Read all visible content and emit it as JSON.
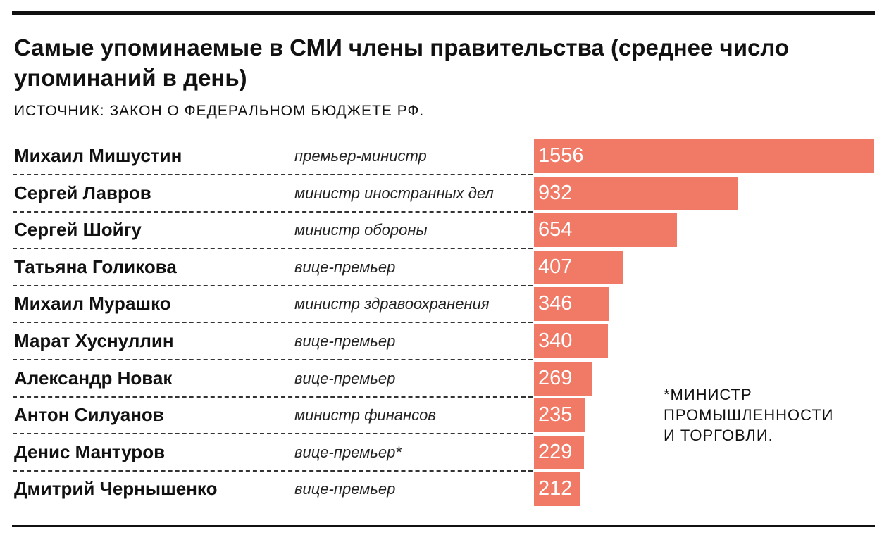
{
  "chart_data": {
    "type": "bar",
    "orientation": "horizontal",
    "title": "Самые упоминаемые в СМИ члены правительства (среднее число упоминаний в день)",
    "subtitle": "ИСТОЧНИК: ЗАКОН О ФЕДЕРАЛЬНОМ БЮДЖЕТЕ РФ.",
    "color": "#f07a66",
    "xlim": [
      0,
      1556
    ],
    "rows": [
      {
        "name": "Михаил Мишустин",
        "role": "премьер-министр",
        "value": 1556
      },
      {
        "name": "Сергей Лавров",
        "role": "министр иностранных дел",
        "value": 932
      },
      {
        "name": "Сергей Шойгу",
        "role": "министр обороны",
        "value": 654
      },
      {
        "name": "Татьяна Голикова",
        "role": "вице-премьер",
        "value": 407
      },
      {
        "name": "Михаил Мурашко",
        "role": "министр здравоохранения",
        "value": 346
      },
      {
        "name": "Марат Хуснуллин",
        "role": "вице-премьер",
        "value": 340
      },
      {
        "name": "Александр Новак",
        "role": "вице-премьер",
        "value": 269
      },
      {
        "name": "Антон Силуанов",
        "role": "министр финансов",
        "value": 235
      },
      {
        "name": "Денис Мантуров",
        "role": "вице-премьер*",
        "value": 229
      },
      {
        "name": "Дмитрий Чернышенко",
        "role": "вице-премьер",
        "value": 212
      }
    ],
    "footnote": [
      "*МИНИСТР",
      "ПРОМЫШЛЕННОСТИ",
      "И ТОРГОВЛИ."
    ]
  }
}
